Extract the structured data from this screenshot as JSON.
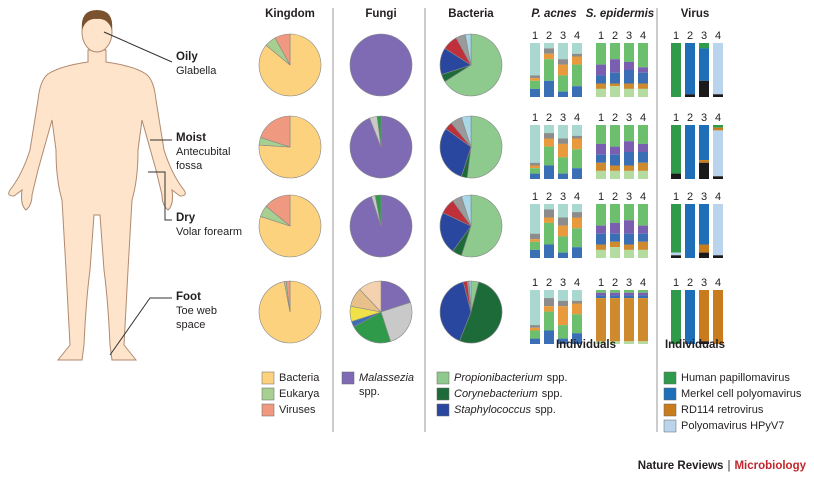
{
  "body_sites": [
    {
      "name": "Oily",
      "sub": [
        "Glabella"
      ]
    },
    {
      "name": "Moist",
      "sub": [
        "Antecubital",
        "fossa"
      ]
    },
    {
      "name": "Dry",
      "sub": [
        "Volar forearm"
      ]
    },
    {
      "name": "Foot",
      "sub": [
        "Toe web",
        "space"
      ]
    }
  ],
  "individuals": [
    "1",
    "2",
    "3",
    "4"
  ],
  "individuals_label": "Individuals",
  "pie_panels": [
    {
      "title": "Kingdom",
      "colors": [
        "#fcd27f",
        "#a7cf8f",
        "#ef9a80"
      ],
      "legend": [
        {
          "name": "Bacteria",
          "color": "#fcd27f"
        },
        {
          "name": "Eukarya",
          "color": "#a7cf8f"
        },
        {
          "name": "Viruses",
          "color": "#ef9a80"
        }
      ],
      "values": [
        [
          86,
          6,
          8
        ],
        [
          76,
          4,
          20
        ],
        [
          80,
          6,
          14
        ],
        [
          97,
          1,
          2
        ]
      ]
    },
    {
      "title": "Fungi",
      "colors": [
        "#7e6bb4",
        "#c9c9c9",
        "#2e9a4a",
        "#3a6fb5",
        "#f0e04a",
        "#e8c08a",
        "#f4d2b0"
      ],
      "legend": [
        {
          "name": "Malassezia",
          "italic": true,
          "suffix": "spp.",
          "color": "#7e6bb4"
        }
      ],
      "values": [
        [
          100
        ],
        [
          94,
          4,
          2
        ],
        [
          95,
          2,
          3
        ],
        [
          20,
          25,
          22,
          3,
          8,
          10,
          12
        ]
      ]
    },
    {
      "title": "Bacteria",
      "colors": [
        "#8ec98e",
        "#1e6b3a",
        "#2a47a0",
        "#c0303a",
        "#9a9a9a",
        "#a8d8e8"
      ],
      "legend": [
        {
          "name": "Propionibacterium",
          "italic": true,
          "suffix": "spp.",
          "color": "#8ec98e"
        },
        {
          "name": "Corynebacterium",
          "italic": true,
          "suffix": "spp.",
          "color": "#1e6b3a"
        },
        {
          "name": "Staphylococcus",
          "italic": true,
          "suffix": "spp.",
          "color": "#2a47a0"
        }
      ],
      "values": [
        [
          66,
          4,
          14,
          8,
          5,
          3
        ],
        [
          52,
          3,
          30,
          4,
          6,
          5
        ],
        [
          55,
          5,
          22,
          8,
          5,
          5
        ],
        [
          4,
          52,
          40,
          2,
          1,
          1
        ]
      ]
    }
  ],
  "bar_panels": [
    {
      "title": "P. acnes",
      "italic": true,
      "colors": [
        "#a8d8d0",
        "#8c8c8c",
        "#e89a3c",
        "#6cbf6c",
        "#3a6fb5"
      ],
      "values": [
        [
          [
            60,
            5,
            5,
            15,
            15
          ],
          [
            10,
            10,
            10,
            40,
            30
          ],
          [
            30,
            10,
            20,
            30,
            10
          ],
          [
            20,
            5,
            15,
            40,
            20
          ]
        ],
        [
          [
            70,
            5,
            5,
            10,
            10
          ],
          [
            15,
            10,
            15,
            35,
            25
          ],
          [
            25,
            10,
            25,
            30,
            10
          ],
          [
            20,
            5,
            20,
            35,
            20
          ]
        ],
        [
          [
            55,
            10,
            5,
            15,
            15
          ],
          [
            10,
            15,
            10,
            40,
            25
          ],
          [
            25,
            15,
            20,
            30,
            10
          ],
          [
            15,
            10,
            20,
            35,
            20
          ]
        ],
        [
          [
            65,
            5,
            5,
            15,
            10
          ],
          [
            15,
            15,
            10,
            35,
            25
          ],
          [
            20,
            10,
            35,
            25,
            10
          ],
          [
            20,
            5,
            20,
            35,
            20
          ]
        ]
      ]
    },
    {
      "title": "S. epidermis",
      "italic": true,
      "colors": [
        "#6cbf6c",
        "#7a5fb0",
        "#3a6fb5",
        "#d08a2e",
        "#b5dca0"
      ],
      "values": [
        [
          [
            40,
            20,
            15,
            10,
            15
          ],
          [
            30,
            25,
            20,
            5,
            20
          ],
          [
            35,
            15,
            25,
            10,
            15
          ],
          [
            45,
            10,
            20,
            10,
            15
          ]
        ],
        [
          [
            35,
            20,
            15,
            15,
            15
          ],
          [
            40,
            15,
            20,
            10,
            15
          ],
          [
            30,
            20,
            25,
            10,
            15
          ],
          [
            35,
            15,
            20,
            15,
            15
          ]
        ],
        [
          [
            40,
            15,
            20,
            10,
            15
          ],
          [
            35,
            20,
            15,
            10,
            20
          ],
          [
            30,
            25,
            20,
            10,
            15
          ],
          [
            40,
            15,
            15,
            15,
            15
          ]
        ],
        [
          [
            5,
            5,
            5,
            80,
            5
          ],
          [
            5,
            5,
            5,
            80,
            5
          ],
          [
            5,
            5,
            5,
            80,
            5
          ],
          [
            5,
            5,
            5,
            80,
            5
          ]
        ]
      ]
    },
    {
      "title": "Virus",
      "italic": false,
      "colors": [
        "#2e9a4a",
        "#1e6fb8",
        "#c97c1e",
        "#b9d4ec",
        "#1a1a1a"
      ],
      "legend": [
        {
          "name": "Human papillomavirus",
          "color": "#2e9a4a"
        },
        {
          "name": "Merkel cell polyomavirus",
          "color": "#1e6fb8"
        },
        {
          "name": "RD114 retrovirus",
          "color": "#c97c1e"
        },
        {
          "name": "Polyomavirus HPyV7",
          "color": "#b9d4ec"
        }
      ],
      "values": [
        [
          [
            100,
            0,
            0,
            0,
            0
          ],
          [
            0,
            95,
            0,
            0,
            5
          ],
          [
            10,
            60,
            0,
            0,
            30
          ],
          [
            0,
            0,
            0,
            95,
            5
          ]
        ],
        [
          [
            90,
            0,
            0,
            0,
            10
          ],
          [
            0,
            100,
            0,
            0,
            0
          ],
          [
            0,
            65,
            5,
            0,
            30
          ],
          [
            5,
            0,
            5,
            85,
            5
          ]
        ],
        [
          [
            90,
            0,
            0,
            5,
            5
          ],
          [
            0,
            100,
            0,
            0,
            0
          ],
          [
            0,
            75,
            15,
            0,
            10
          ],
          [
            0,
            0,
            0,
            95,
            5
          ]
        ],
        [
          [
            100,
            0,
            0,
            0,
            0
          ],
          [
            0,
            100,
            0,
            0,
            0
          ],
          [
            0,
            0,
            95,
            0,
            5
          ],
          [
            0,
            0,
            100,
            0,
            0
          ]
        ]
      ]
    }
  ],
  "footer": {
    "journal": "Nature Reviews",
    "separator": "|",
    "subject": "Microbiology"
  }
}
